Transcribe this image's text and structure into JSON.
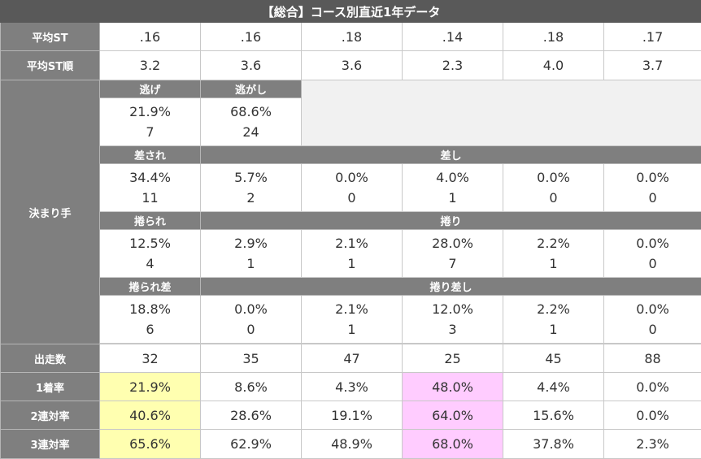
{
  "title": "【総合】コース別直近1年データ",
  "avg_st": {
    "label": "平均ST",
    "values": [
      ".16",
      ".16",
      ".18",
      ".14",
      ".18",
      ".17"
    ]
  },
  "avg_st_rank": {
    "label": "平均ST順",
    "values": [
      "3.2",
      "3.6",
      "3.6",
      "2.3",
      "4.0",
      "3.7"
    ]
  },
  "kimarite": {
    "label": "決まり手",
    "nige_label": "逃げ",
    "nigashi_label": "逃がし",
    "nige": {
      "pct": "21.9%",
      "count": "7"
    },
    "nigashi": {
      "pct": "68.6%",
      "count": "24"
    },
    "sasare_label": "差され",
    "sashi_label": "差し",
    "sashi_row": [
      {
        "pct": "34.4%",
        "count": "11"
      },
      {
        "pct": "5.7%",
        "count": "2"
      },
      {
        "pct": "0.0%",
        "count": "0"
      },
      {
        "pct": "4.0%",
        "count": "1"
      },
      {
        "pct": "0.0%",
        "count": "0"
      },
      {
        "pct": "0.0%",
        "count": "0"
      }
    ],
    "makurare_label": "捲られ",
    "makuri_label": "捲り",
    "makuri_row": [
      {
        "pct": "12.5%",
        "count": "4"
      },
      {
        "pct": "2.9%",
        "count": "1"
      },
      {
        "pct": "2.1%",
        "count": "1"
      },
      {
        "pct": "28.0%",
        "count": "7"
      },
      {
        "pct": "2.2%",
        "count": "1"
      },
      {
        "pct": "0.0%",
        "count": "0"
      }
    ],
    "makurare_sashi_label": "捲られ差",
    "makuri_sashi_label": "捲り差し",
    "makuri_sashi_row": [
      {
        "pct": "18.8%",
        "count": "6"
      },
      {
        "pct": "0.0%",
        "count": "0"
      },
      {
        "pct": "2.1%",
        "count": "1"
      },
      {
        "pct": "12.0%",
        "count": "3"
      },
      {
        "pct": "2.2%",
        "count": "1"
      },
      {
        "pct": "0.0%",
        "count": "0"
      }
    ]
  },
  "starts": {
    "label": "出走数",
    "values": [
      "32",
      "35",
      "47",
      "25",
      "45",
      "88"
    ]
  },
  "win_rate": {
    "label": "1着率",
    "values": [
      "21.9%",
      "8.6%",
      "4.3%",
      "48.0%",
      "4.4%",
      "0.0%"
    ]
  },
  "top2_rate": {
    "label": "2連対率",
    "values": [
      "40.6%",
      "28.6%",
      "19.1%",
      "64.0%",
      "15.6%",
      "0.0%"
    ]
  },
  "top3_rate": {
    "label": "3連対率",
    "values": [
      "65.6%",
      "62.9%",
      "48.9%",
      "68.0%",
      "37.8%",
      "2.3%"
    ]
  },
  "highlight_colors": {
    "yellow": "#ffffb0",
    "pink": "#ffccff"
  }
}
